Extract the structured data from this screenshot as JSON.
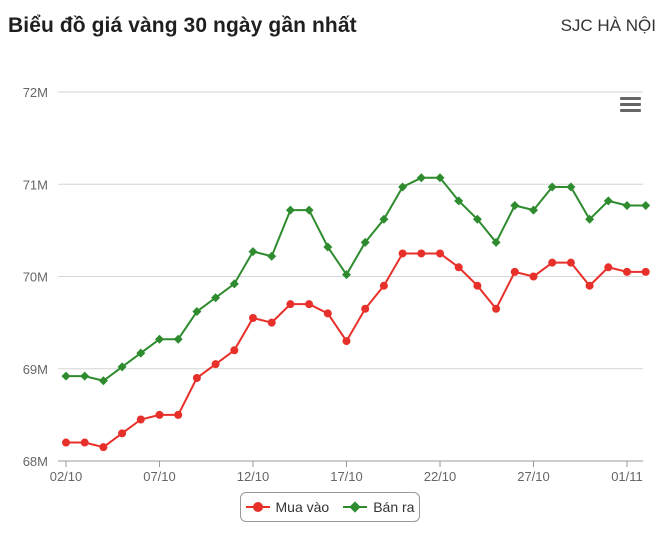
{
  "header": {
    "title": "Biểu đồ giá vàng 30 ngày gần nhất",
    "subtitle": "SJC HÀ NỘI"
  },
  "menu": {
    "icon": "hamburger-menu-icon"
  },
  "chart_data": {
    "type": "line",
    "title": "Biểu đồ giá vàng 30 ngày gần nhất",
    "subtitle": "SJC HÀ NỘI",
    "xlabel": "",
    "ylabel": "",
    "ylim": [
      68,
      72
    ],
    "yticks": [
      {
        "value": 68,
        "label": "68M"
      },
      {
        "value": 69,
        "label": "69M"
      },
      {
        "value": 70,
        "label": "70M"
      },
      {
        "value": 71,
        "label": "71M"
      },
      {
        "value": 72,
        "label": "72M"
      }
    ],
    "xticks": [
      {
        "index": 0,
        "label": "02/10"
      },
      {
        "index": 5,
        "label": "07/10"
      },
      {
        "index": 10,
        "label": "12/10"
      },
      {
        "index": 15,
        "label": "17/10"
      },
      {
        "index": 20,
        "label": "22/10"
      },
      {
        "index": 25,
        "label": "27/10"
      },
      {
        "index": 30,
        "label": "01/11"
      }
    ],
    "grid": true,
    "legend_position": "bottom-center",
    "series": [
      {
        "name": "Mua vào",
        "color": "#e8302a",
        "marker": "circle",
        "values": [
          68.2,
          68.2,
          68.15,
          68.3,
          68.45,
          68.5,
          68.5,
          68.9,
          69.05,
          69.2,
          69.55,
          69.5,
          69.7,
          69.7,
          69.6,
          69.3,
          69.65,
          69.9,
          70.25,
          70.25,
          70.25,
          70.1,
          69.9,
          69.65,
          70.05,
          70.0,
          70.15,
          70.15,
          69.9,
          70.1,
          70.05,
          70.05
        ]
      },
      {
        "name": "Bán ra",
        "color": "#2e8b2e",
        "marker": "diamond",
        "values": [
          68.92,
          68.92,
          68.87,
          69.02,
          69.17,
          69.32,
          69.32,
          69.62,
          69.77,
          69.92,
          70.27,
          70.22,
          70.72,
          70.72,
          70.32,
          70.02,
          70.37,
          70.62,
          70.97,
          71.07,
          71.07,
          70.82,
          70.62,
          70.37,
          70.77,
          70.72,
          70.97,
          70.97,
          70.62,
          70.82,
          70.77,
          70.77
        ]
      }
    ]
  }
}
